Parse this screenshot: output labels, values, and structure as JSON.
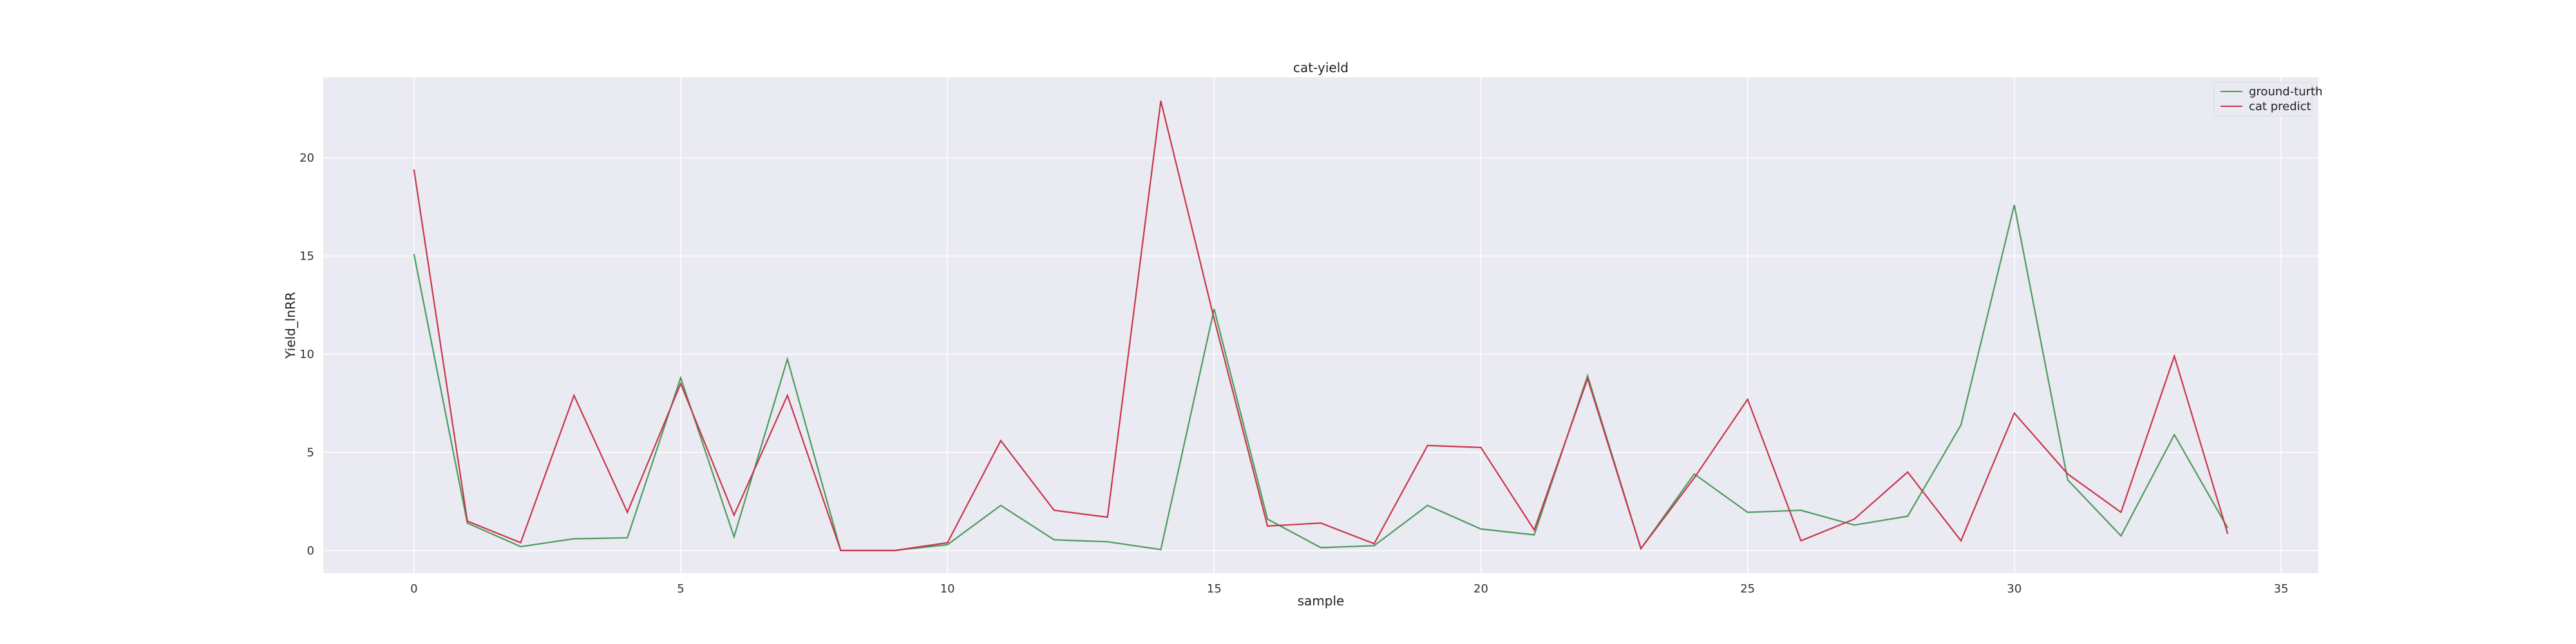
{
  "chart_data": {
    "type": "line",
    "title": "cat-yield",
    "xlabel": "sample",
    "ylabel": "Yield_lnRR",
    "x": [
      0,
      1,
      2,
      3,
      4,
      5,
      6,
      7,
      8,
      9,
      10,
      11,
      12,
      13,
      14,
      15,
      16,
      17,
      18,
      19,
      20,
      21,
      22,
      23,
      24,
      25,
      26,
      27,
      28,
      29,
      30,
      31,
      32,
      33,
      34
    ],
    "xlim": [
      -1.7,
      35.7
    ],
    "ylim": [
      -1.15,
      24.1
    ],
    "xticks": [
      0,
      5,
      10,
      15,
      20,
      25,
      30,
      35
    ],
    "yticks": [
      0,
      5,
      10,
      15,
      20
    ],
    "grid": true,
    "legend_position": "top-right",
    "series": [
      {
        "name": "ground-turth",
        "color": "#4c9a5c",
        "values": [
          15.1,
          1.4,
          0.2,
          0.6,
          0.65,
          8.8,
          0.7,
          9.75,
          0.0,
          0.0,
          0.3,
          2.3,
          0.55,
          0.45,
          0.05,
          12.3,
          1.6,
          0.15,
          0.25,
          2.3,
          1.1,
          0.8,
          8.9,
          0.1,
          3.9,
          1.95,
          2.05,
          1.3,
          1.75,
          6.4,
          17.6,
          3.6,
          0.75,
          5.9,
          1.15
        ]
      },
      {
        "name": "cat predict",
        "color": "#c8354a",
        "values": [
          19.4,
          1.5,
          0.4,
          7.9,
          1.95,
          8.5,
          1.8,
          7.9,
          0.0,
          0.0,
          0.4,
          5.6,
          2.05,
          1.7,
          22.9,
          11.8,
          1.25,
          1.4,
          0.35,
          5.35,
          5.25,
          1.05,
          8.75,
          0.1,
          3.7,
          7.7,
          0.5,
          1.6,
          4.0,
          0.5,
          7.0,
          3.9,
          1.95,
          9.9,
          0.85
        ]
      }
    ]
  }
}
